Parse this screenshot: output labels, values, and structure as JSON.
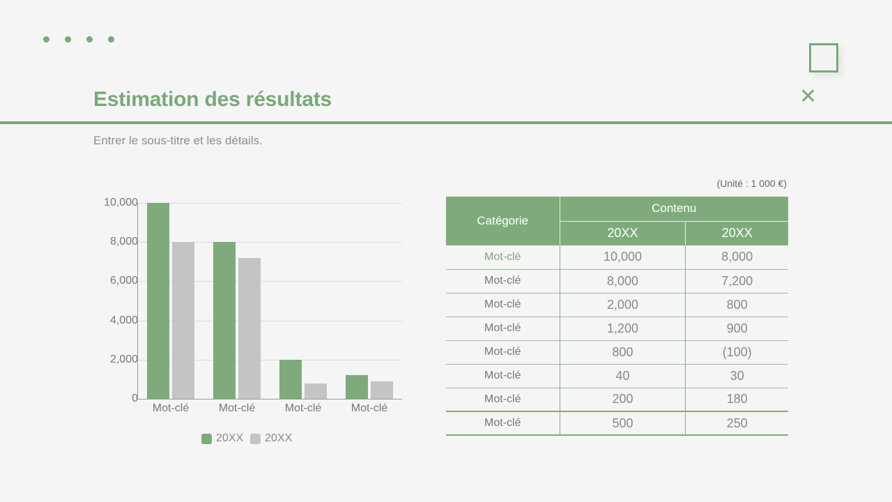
{
  "slide": {
    "title": "Estimation des résultats",
    "subtitle": "Entrer le sous-titre et les détails.",
    "accent_color": "#7aa87a",
    "secondary_color": "#c4c3c5"
  },
  "chart_data": {
    "type": "bar",
    "title": "",
    "xlabel": "",
    "ylabel": "",
    "categories": [
      "Mot-clé",
      "Mot-clé",
      "Mot-clé",
      "Mot-clé"
    ],
    "series": [
      {
        "name": "20XX",
        "color": "#7fab7c",
        "values": [
          10000,
          8000,
          2000,
          1200
        ]
      },
      {
        "name": "20XX",
        "color": "#c4c3c5",
        "values": [
          8000,
          7200,
          800,
          900
        ]
      }
    ],
    "y_ticks": [
      "0",
      "2,000",
      "4,000",
      "6,000",
      "8,000",
      "10,000"
    ],
    "ylim": [
      0,
      10000
    ],
    "grid": true,
    "legend_position": "bottom"
  },
  "legend": [
    {
      "label": "20XX"
    },
    {
      "label": "20XX"
    }
  ],
  "table": {
    "unit_note": "(Unité : 1 000 €)",
    "header": {
      "category": "Catégorie",
      "group": "Contenu",
      "years": [
        "20XX",
        "20XX"
      ]
    },
    "rows": [
      {
        "category": "Mot-clé",
        "v1": "10,000",
        "v2": "8,000"
      },
      {
        "category": "Mot-clé",
        "v1": "8,000",
        "v2": "7,200"
      },
      {
        "category": "Mot-clé",
        "v1": "2,000",
        "v2": "800"
      },
      {
        "category": "Mot-clé",
        "v1": "1,200",
        "v2": "900"
      },
      {
        "category": "Mot-clé",
        "v1": "800",
        "v2": "(100)"
      },
      {
        "category": "Mot-clé",
        "v1": "40",
        "v2": "30"
      },
      {
        "category": "Mot-clé",
        "v1": "200",
        "v2": "180"
      },
      {
        "category": "Mot-clé",
        "v1": "500",
        "v2": "250"
      }
    ]
  }
}
